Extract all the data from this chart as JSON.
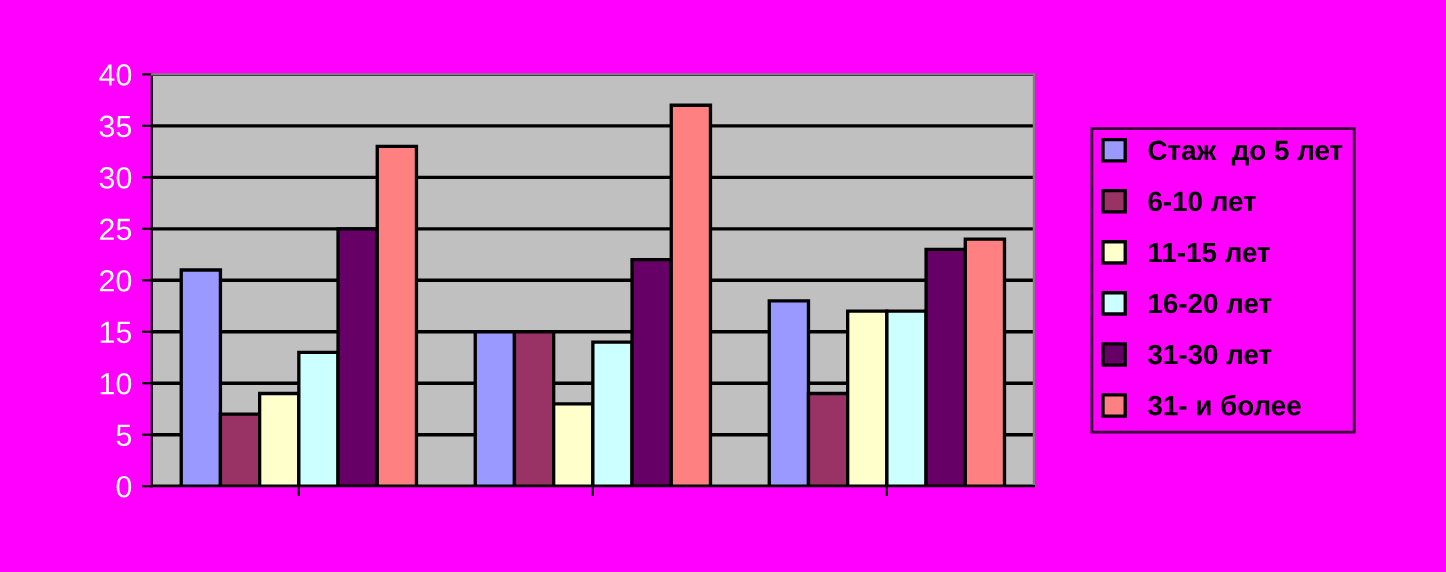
{
  "chart_data": {
    "type": "bar",
    "categories": [
      null,
      null,
      null
    ],
    "series": [
      {
        "name": "Стаж  до 5 лет",
        "color": "#9999ff",
        "values": [
          21,
          15,
          18
        ]
      },
      {
        "name": "6-10 лет",
        "color": "#993366",
        "values": [
          7,
          15,
          9
        ]
      },
      {
        "name": "11-15 лет",
        "color": "#ffffcc",
        "values": [
          9,
          8,
          17
        ]
      },
      {
        "name": "16-20 лет",
        "color": "#ccffff",
        "values": [
          13,
          14,
          17
        ]
      },
      {
        "name": "31-30 лет",
        "color": "#660066",
        "values": [
          25,
          22,
          23
        ]
      },
      {
        "name": "31- и более",
        "color": "#ff8080",
        "values": [
          33,
          37,
          24
        ]
      }
    ],
    "ylim": [
      0,
      40
    ],
    "yticks": [
      0,
      5,
      10,
      15,
      20,
      25,
      30,
      35,
      40
    ],
    "grid": "y",
    "legend": "right"
  }
}
